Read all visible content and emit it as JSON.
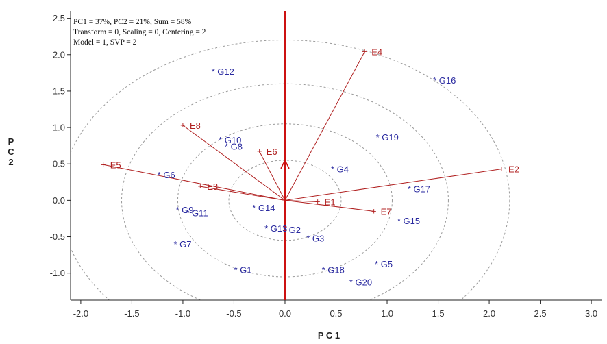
{
  "chart_data": {
    "type": "scatter",
    "title": "",
    "info_lines": [
      "PC1 = 37%, PC2 = 21%, Sum = 58%",
      "Transform = 0, Scaling = 0, Centering = 2",
      "Model = 1, SVP = 2"
    ],
    "xlabel": "P C 1",
    "ylabel": "P\nC\n2",
    "xlim": [
      -2.1,
      3.1
    ],
    "ylim": [
      -1.37,
      2.6
    ],
    "x_ticks": [
      "-2.0",
      "-1.5",
      "-1.0",
      "-0.5",
      "0.0",
      "0.5",
      "1.0",
      "1.5",
      "2.0",
      "2.5",
      "3.0"
    ],
    "y_ticks": [
      "2.5",
      "2.0",
      "1.5",
      "1.0",
      "0.5",
      "0.0",
      "-0.5",
      "-1.0"
    ],
    "circle_radii": [
      0.55,
      1.05,
      1.6,
      2.2
    ],
    "environments": [
      {
        "label": "E1",
        "x": 0.32,
        "y": -0.02
      },
      {
        "label": "E2",
        "x": 2.12,
        "y": 0.43
      },
      {
        "label": "E3",
        "x": -0.83,
        "y": 0.19
      },
      {
        "label": "E4",
        "x": 0.78,
        "y": 2.04
      },
      {
        "label": "E5",
        "x": -1.78,
        "y": 0.49
      },
      {
        "label": "E6",
        "x": -0.25,
        "y": 0.67
      },
      {
        "label": "E7",
        "x": 0.87,
        "y": -0.15
      },
      {
        "label": "E8",
        "x": -1.0,
        "y": 1.03
      }
    ],
    "genotypes": [
      {
        "label": "G1",
        "x": -0.48,
        "y": -0.95
      },
      {
        "label": "G2",
        "x": 0.0,
        "y": -0.4
      },
      {
        "label": "G3",
        "x": 0.23,
        "y": -0.52
      },
      {
        "label": "G4",
        "x": 0.47,
        "y": 0.43
      },
      {
        "label": "G5",
        "x": 0.9,
        "y": -0.87
      },
      {
        "label": "G6",
        "x": -1.23,
        "y": 0.35
      },
      {
        "label": "G7",
        "x": -1.07,
        "y": -0.6
      },
      {
        "label": "G8",
        "x": -0.57,
        "y": 0.74
      },
      {
        "label": "G9",
        "x": -1.05,
        "y": -0.13
      },
      {
        "label": "G10",
        "x": -0.63,
        "y": 0.83
      },
      {
        "label": "G11",
        "x": -0.95,
        "y": -0.17
      },
      {
        "label": "G12",
        "x": -0.7,
        "y": 1.77
      },
      {
        "label": "G13",
        "x": -0.18,
        "y": -0.38
      },
      {
        "label": "G14",
        "x": -0.3,
        "y": -0.1
      },
      {
        "label": "G15",
        "x": 1.12,
        "y": -0.28
      },
      {
        "label": "G16",
        "x": 1.47,
        "y": 1.65
      },
      {
        "label": "G17",
        "x": 1.22,
        "y": 0.16
      },
      {
        "label": "G18",
        "x": 0.38,
        "y": -0.95
      },
      {
        "label": "G19",
        "x": 0.91,
        "y": 0.87
      },
      {
        "label": "G20",
        "x": 0.65,
        "y": -1.12
      }
    ],
    "colors": {
      "environment": "#b02020",
      "genotype": "#2a2aa0",
      "axis_line": "#cc1111",
      "circle": "#9a9a9a",
      "frame": "#222222"
    }
  }
}
